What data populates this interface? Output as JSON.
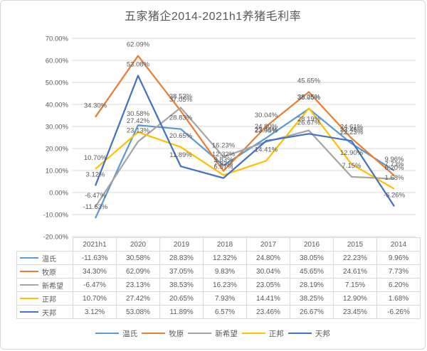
{
  "title": "五家猪企2014-2021h1养猪毛利率",
  "chart_data": {
    "type": "line",
    "title": "五家猪企2014-2021h1养猪毛利率",
    "categories": [
      "2021h1",
      "2020",
      "2019",
      "2018",
      "2017",
      "2016",
      "2015",
      "2014"
    ],
    "series": [
      {
        "name": "温氏",
        "color": "#5B9BD5",
        "values": [
          -11.63,
          30.58,
          28.83,
          12.32,
          24.8,
          38.05,
          22.23,
          9.96
        ]
      },
      {
        "name": "牧原",
        "color": "#ED7D31",
        "values": [
          34.3,
          62.09,
          37.05,
          9.83,
          30.04,
          45.65,
          24.61,
          7.73
        ]
      },
      {
        "name": "新希望",
        "color": "#A5A5A5",
        "values": [
          -6.47,
          23.13,
          38.53,
          16.23,
          23.05,
          28.19,
          7.15,
          6.2
        ]
      },
      {
        "name": "正邦",
        "color": "#FFC000",
        "values": [
          10.7,
          27.42,
          20.65,
          7.93,
          14.41,
          38.25,
          12.9,
          1.68
        ]
      },
      {
        "name": "天邦",
        "color": "#4472C4",
        "values": [
          3.12,
          53.08,
          11.89,
          6.57,
          23.46,
          26.67,
          23.45,
          -6.26
        ]
      }
    ],
    "ylim": [
      -20,
      70
    ],
    "ytick_step": 10,
    "ytick_labels": [
      "70.00%",
      "60.00%",
      "50.00%",
      "40.00%",
      "30.00%",
      "20.00%",
      "10.00%",
      "0.00%",
      "-10.00%",
      "-20.00%"
    ],
    "value_format": "0.00%",
    "grid": true,
    "data_labels": true,
    "data_table_shown": true,
    "legend_position": "bottom",
    "gridline_color": "#d9d9d9",
    "text_color": "#595959"
  }
}
